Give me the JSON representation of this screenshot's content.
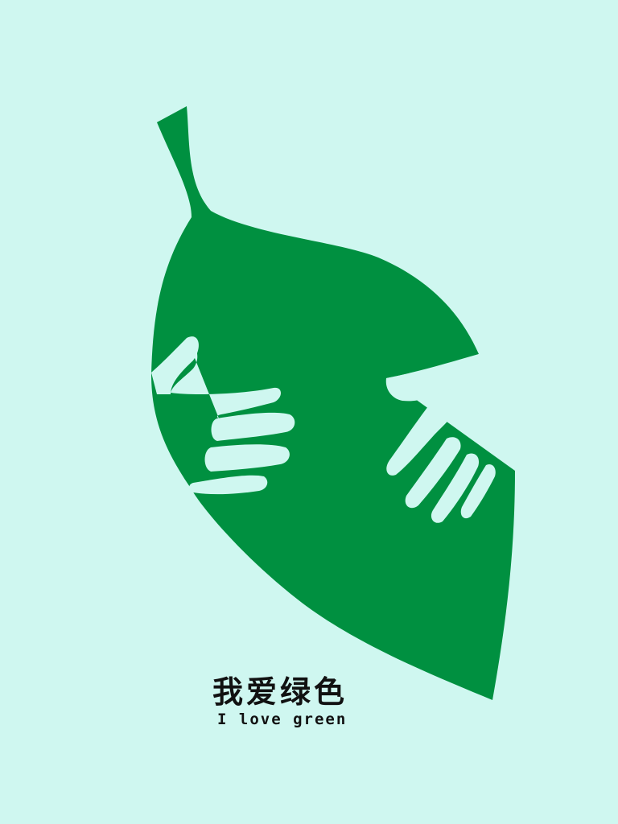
{
  "colors": {
    "background": "#cff7f0",
    "leaf": "#009040",
    "hands": "#cff7f0",
    "text": "#111111"
  },
  "poster": {
    "headline": "我爱绿色",
    "subline": "I love green",
    "illustration": "leaf-with-hands"
  }
}
